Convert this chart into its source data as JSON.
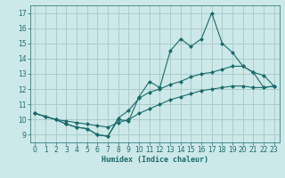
{
  "xlabel": "Humidex (Indice chaleur)",
  "background_color": "#cce8e8",
  "grid_color": "#aacccc",
  "line_color": "#1a6b6b",
  "xlim": [
    -0.5,
    23.5
  ],
  "ylim": [
    8.5,
    17.5
  ],
  "xticks": [
    0,
    1,
    2,
    3,
    4,
    5,
    6,
    7,
    8,
    9,
    10,
    11,
    12,
    13,
    14,
    15,
    16,
    17,
    18,
    19,
    20,
    21,
    22,
    23
  ],
  "yticks": [
    9,
    10,
    11,
    12,
    13,
    14,
    15,
    16,
    17
  ],
  "series1_x": [
    0,
    1,
    2,
    3,
    4,
    5,
    6,
    7,
    8,
    9,
    10,
    11,
    12,
    13,
    14,
    15,
    16,
    17,
    18,
    19,
    20,
    21,
    22,
    23
  ],
  "series1_y": [
    10.4,
    10.2,
    10.0,
    9.7,
    9.5,
    9.4,
    9.0,
    8.9,
    10.0,
    9.9,
    11.5,
    12.5,
    12.1,
    14.5,
    15.3,
    14.8,
    15.3,
    17.0,
    15.0,
    14.4,
    13.5,
    13.1,
    12.9,
    12.2
  ],
  "series2_x": [
    0,
    1,
    2,
    3,
    4,
    5,
    6,
    7,
    8,
    9,
    10,
    11,
    12,
    13,
    14,
    15,
    16,
    17,
    18,
    19,
    20,
    21,
    22,
    23
  ],
  "series2_y": [
    10.4,
    10.2,
    10.0,
    9.7,
    9.5,
    9.4,
    9.0,
    8.9,
    10.1,
    10.6,
    11.4,
    11.8,
    12.0,
    12.3,
    12.5,
    12.8,
    13.0,
    13.1,
    13.3,
    13.5,
    13.5,
    13.1,
    12.1,
    12.2
  ],
  "series3_x": [
    0,
    1,
    2,
    3,
    4,
    5,
    6,
    7,
    8,
    9,
    10,
    11,
    12,
    13,
    14,
    15,
    16,
    17,
    18,
    19,
    20,
    21,
    22,
    23
  ],
  "series3_y": [
    10.4,
    10.2,
    10.0,
    9.9,
    9.8,
    9.7,
    9.6,
    9.5,
    9.8,
    10.0,
    10.4,
    10.7,
    11.0,
    11.3,
    11.5,
    11.7,
    11.9,
    12.0,
    12.1,
    12.2,
    12.2,
    12.1,
    12.1,
    12.2
  ]
}
